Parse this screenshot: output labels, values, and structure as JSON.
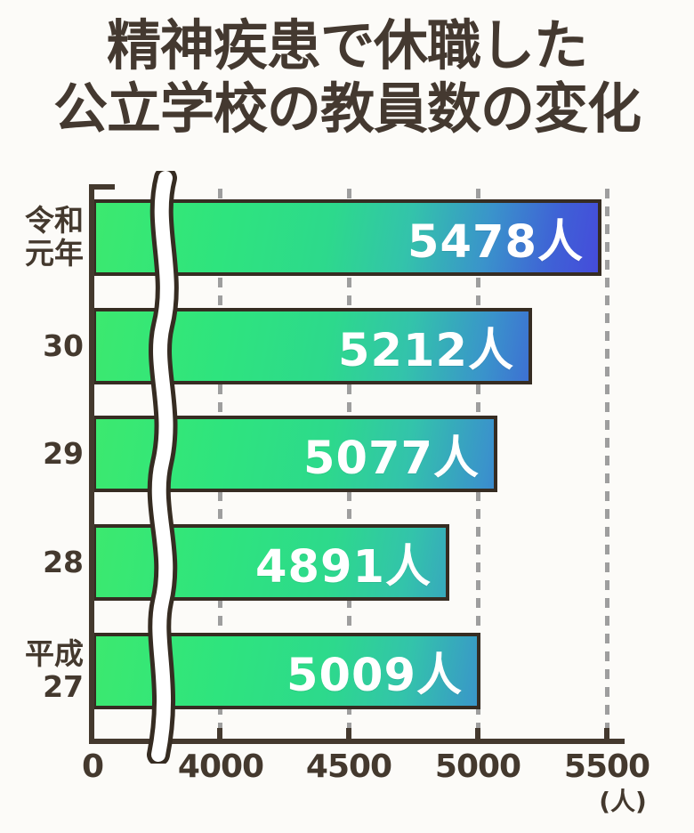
{
  "title": {
    "line1": "精神疾患で休職した",
    "line2": "公立学校の教員数の変化"
  },
  "chart_data": {
    "type": "bar",
    "orientation": "horizontal",
    "title": "精神疾患で休職した公立学校の教員数の変化",
    "categories": [
      "令和元年",
      "30",
      "29",
      "28",
      "平成27"
    ],
    "category_display": [
      "令和\n元年",
      "30",
      "29",
      "28",
      "平成\n27"
    ],
    "values": [
      5478,
      5212,
      5077,
      4891,
      5009
    ],
    "value_labels": [
      "5478人",
      "5212人",
      "5077人",
      "4891人",
      "5009人"
    ],
    "x_ticks": [
      {
        "value": 0,
        "label": "0"
      },
      {
        "value": 4000,
        "label": "4000"
      },
      {
        "value": 4500,
        "label": "4500"
      },
      {
        "value": 5000,
        "label": "5000"
      },
      {
        "value": 5500,
        "label": "5500"
      }
    ],
    "axis_unit": "(人)",
    "axis_break": true,
    "grid": "dashed-vertical-at-ticks",
    "legend": "none",
    "colors": {
      "bar_gradient_start": "#3ce96f",
      "bar_gradient_mid": "#2dd98c",
      "bar_gradient_end": "#4745dc",
      "bar_border": "#362c22",
      "ink": "#44392e",
      "gridline": "#9e9e9e",
      "value_text": "#ffffff",
      "background": "#fcfbf8"
    }
  }
}
